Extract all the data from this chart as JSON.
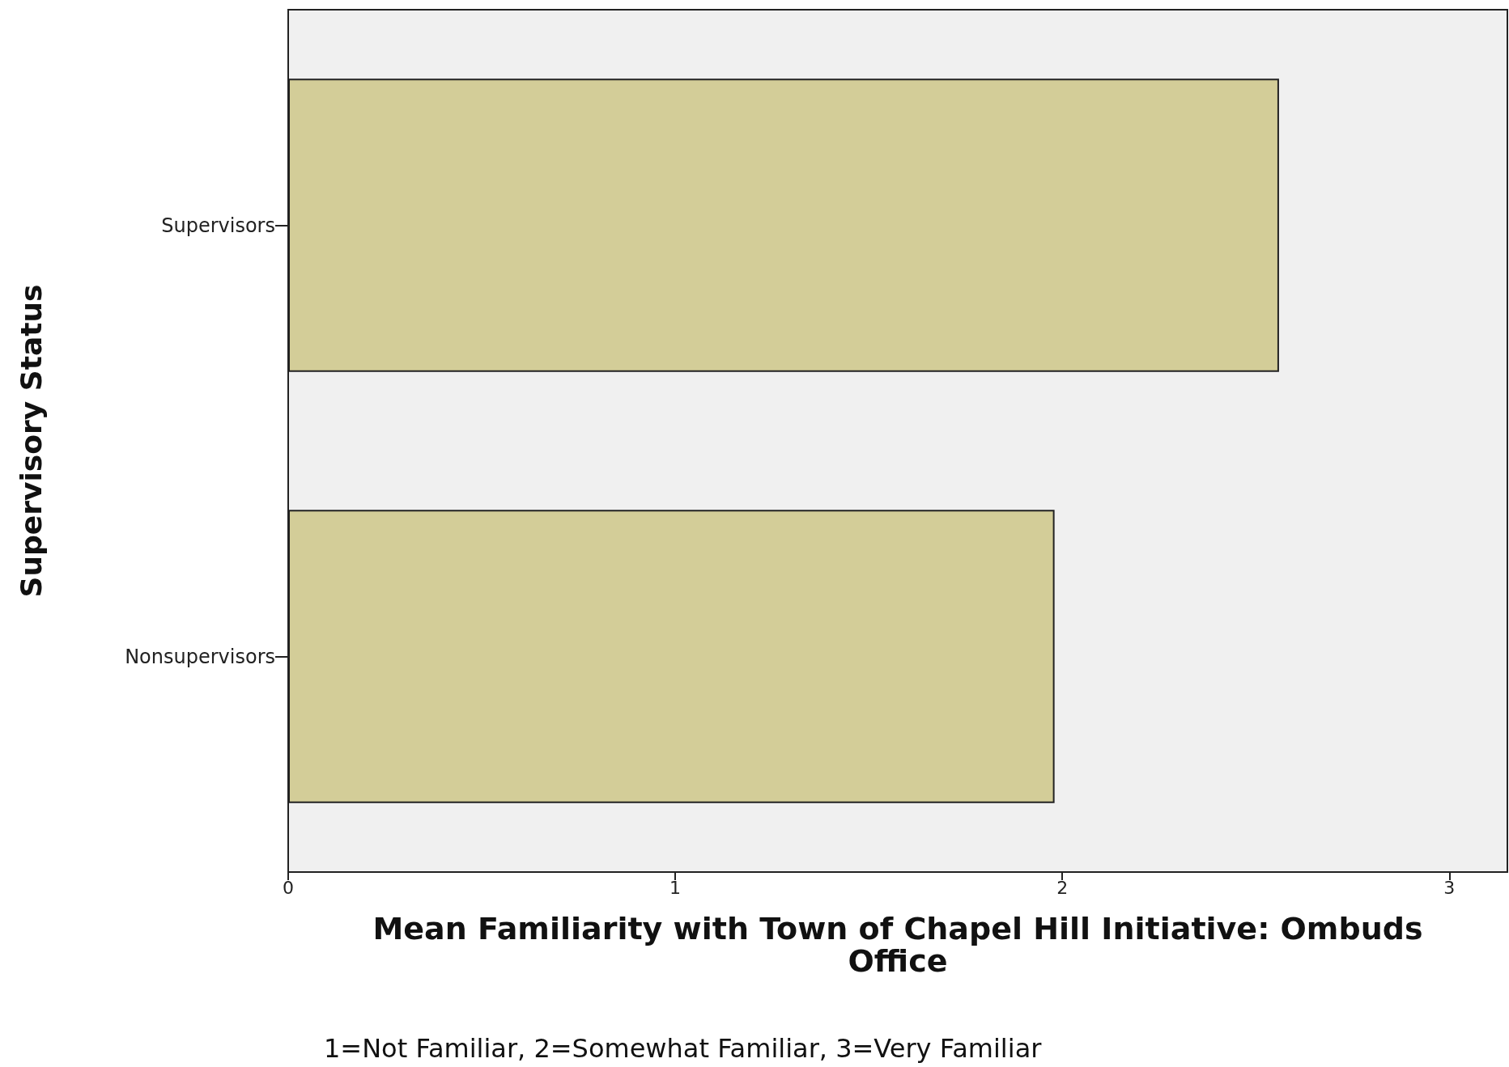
{
  "chart_data": {
    "type": "bar",
    "orientation": "horizontal",
    "categories": [
      "Supervisors",
      "Nonsupervisors"
    ],
    "series": [
      {
        "color": "#d3cd98",
        "values": [
          2.56,
          1.98
        ]
      }
    ],
    "xlim": [
      0,
      3.15
    ],
    "xticks": [
      0,
      1,
      2,
      3
    ],
    "xlabel": "Mean Familiarity with Town of Chapel Hill Initiative: Ombuds\nOffice",
    "ylabel": "Supervisory Status",
    "annotations": [
      "1=Not Familiar, 2=Somewhat Familiar, 3=Very Familiar"
    ],
    "grid": false
  }
}
